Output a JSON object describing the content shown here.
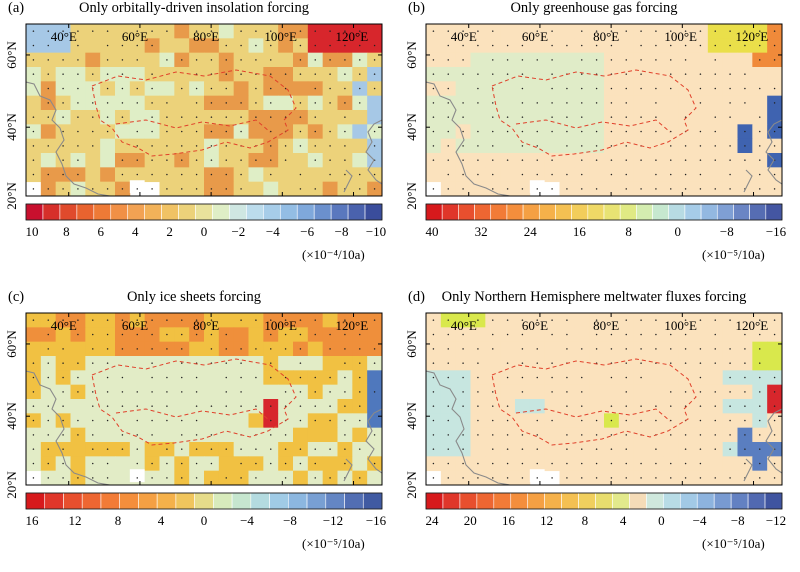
{
  "figure": {
    "panels": [
      {
        "id": "a",
        "letter": "(a)",
        "title": "Only orbitally-driven insolation forcing",
        "lon_labels": [
          "40°E",
          "60°E",
          "80°E",
          "100°E",
          "120°E"
        ],
        "lat_labels": [
          "60°N",
          "40°N",
          "20°N"
        ],
        "colorbar": {
          "colors": [
            "#c8102e",
            "#d62f2a",
            "#e04a2c",
            "#e8632f",
            "#ee7a36",
            "#f19046",
            "#f2a253",
            "#f2b259",
            "#f0c264",
            "#ecd27a",
            "#e9e29c",
            "#dfeec6",
            "#cfe7e2",
            "#bcdcec",
            "#a7cde9",
            "#93bde4",
            "#7fa8db",
            "#6b90cd",
            "#5a78be",
            "#4a62ad",
            "#3a4d9c"
          ],
          "labels": [
            "10",
            "8",
            "6",
            "4",
            "2",
            "0",
            "−2",
            "−4",
            "−6",
            "−8",
            "−10"
          ],
          "unit": "(×10⁻⁴/10a)"
        },
        "field": {
          "base": "#ecd27a",
          "warm_north": "#e89a4a",
          "hot_ne": "#d7262c",
          "cool_east": "#a6c8e6",
          "light_zone": "#dfeec6"
        }
      },
      {
        "id": "b",
        "letter": "(b)",
        "title": "Only greenhouse gas forcing",
        "lon_labels": [
          "40°E",
          "60°E",
          "80°E",
          "100°E",
          "120°E"
        ],
        "lat_labels": [
          "60°N",
          "40°N",
          "20°N"
        ],
        "colorbar": {
          "colors": [
            "#d7191c",
            "#e0362a",
            "#e84f2e",
            "#ee6632",
            "#f27b37",
            "#f48e3c",
            "#f5a043",
            "#f5b14a",
            "#f4c052",
            "#f2cd5b",
            "#efd966",
            "#e8e373",
            "#e0ea84",
            "#d4edb0",
            "#c6e8cf",
            "#b7dbe3",
            "#a6cce8",
            "#93b8e1",
            "#7f9fd4",
            "#6a85c4",
            "#566db3",
            "#4456a2"
          ],
          "labels": [
            "40",
            "32",
            "24",
            "16",
            "8",
            "0",
            "−8",
            "−16"
          ],
          "unit": "(×10⁻⁵/10a)"
        },
        "field": {
          "base": "#fbe2bd",
          "greenish": "#e0ecc8",
          "yellow_ne": "#eadf4a",
          "orange_ne": "#f08a3a",
          "blue_e": "#3f63b0"
        }
      },
      {
        "id": "c",
        "letter": "(c)",
        "title": "Only ice sheets forcing",
        "lon_labels": [
          "40°E",
          "60°E",
          "80°E",
          "100°E",
          "120°E"
        ],
        "lat_labels": [
          "60°N",
          "40°N",
          "20°N"
        ],
        "colorbar": {
          "colors": [
            "#d7191c",
            "#e0362a",
            "#e84f2e",
            "#ee6632",
            "#f27b37",
            "#f48e3c",
            "#f5a043",
            "#f5b14a",
            "#f0c55d",
            "#e6dc8a",
            "#d8ebbc",
            "#c6e6cf",
            "#b4dbe0",
            "#a0cbe6",
            "#8cb7e0",
            "#789fd3",
            "#6486c4",
            "#526eb3",
            "#405aa2"
          ],
          "labels": [
            "16",
            "12",
            "8",
            "4",
            "0",
            "−4",
            "−8",
            "−12",
            "−16"
          ],
          "unit": "(×10⁻⁵/10a)"
        },
        "field": {
          "base": "#f1c142",
          "light": "#e2ecc6",
          "orange_n": "#ef8f3b",
          "red_c": "#d7262c",
          "blue_e": "#4f78bd"
        }
      },
      {
        "id": "d",
        "letter": "(d)",
        "title": "Only Northern Hemisphere meltwater fluxes forcing",
        "lon_labels": [
          "40°E",
          "60°E",
          "80°E",
          "100°E",
          "120°E"
        ],
        "lat_labels": [
          "60°N",
          "40°N",
          "20°N"
        ],
        "colorbar": {
          "colors": [
            "#d7191c",
            "#e0362a",
            "#e84f2e",
            "#ee6632",
            "#f27b37",
            "#f48e3c",
            "#f5a043",
            "#f5b14a",
            "#f4c052",
            "#f0cf5e",
            "#e8dd6e",
            "#e2e98c",
            "#f5dcb8",
            "#cfe8dd",
            "#b8dce6",
            "#a2c9e6",
            "#8db3de",
            "#789ad1",
            "#6381c2",
            "#5169b1",
            "#3f54a0"
          ],
          "labels": [
            "24",
            "20",
            "16",
            "12",
            "8",
            "4",
            "0",
            "−4",
            "−8",
            "−12"
          ],
          "unit": "(×10⁻⁵/10a)"
        },
        "field": {
          "base": "#fbe2bd",
          "blueish": "#c7e6e0",
          "yellow": "#d9e84c",
          "red_e": "#d7262c",
          "blue_e": "#5a7ec0"
        }
      }
    ]
  }
}
